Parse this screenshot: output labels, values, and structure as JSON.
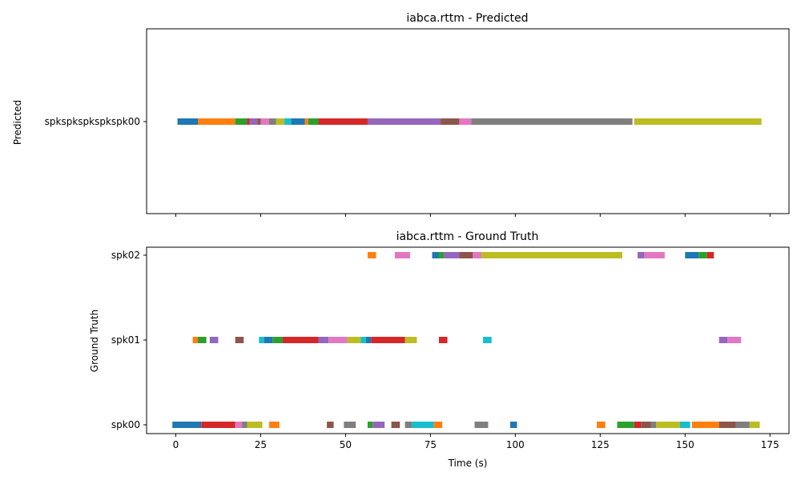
{
  "chart_data": [
    {
      "type": "timeline",
      "title": "iabca.rttm - Predicted",
      "ylabel": "Predicted",
      "xlabel": "",
      "xlim": [
        -8.6,
        180.6
      ],
      "xticks": [
        0,
        25,
        50,
        75,
        100,
        125,
        150,
        175
      ],
      "show_xtick_labels": false,
      "categories": [
        "spkspkspkspkspk00"
      ],
      "segments": [
        {
          "row": 0,
          "start": 0.5,
          "end": 6.5,
          "color": "#1f77b4"
        },
        {
          "row": 0,
          "start": 6.5,
          "end": 17.5,
          "color": "#ff7f0e"
        },
        {
          "row": 0,
          "start": 17.5,
          "end": 21.0,
          "color": "#2ca02c"
        },
        {
          "row": 0,
          "start": 21.0,
          "end": 21.8,
          "color": "#d62728"
        },
        {
          "row": 0,
          "start": 21.8,
          "end": 24.0,
          "color": "#9467bd"
        },
        {
          "row": 0,
          "start": 24.0,
          "end": 25.0,
          "color": "#8c564b"
        },
        {
          "row": 0,
          "start": 25.0,
          "end": 27.5,
          "color": "#e377c2"
        },
        {
          "row": 0,
          "start": 27.5,
          "end": 29.5,
          "color": "#7f7f7f"
        },
        {
          "row": 0,
          "start": 29.5,
          "end": 32.0,
          "color": "#bcbd22"
        },
        {
          "row": 0,
          "start": 32.0,
          "end": 34.0,
          "color": "#17becf"
        },
        {
          "row": 0,
          "start": 34.0,
          "end": 38.0,
          "color": "#1f77b4"
        },
        {
          "row": 0,
          "start": 38.0,
          "end": 39.0,
          "color": "#ff7f0e"
        },
        {
          "row": 0,
          "start": 39.0,
          "end": 42.0,
          "color": "#2ca02c"
        },
        {
          "row": 0,
          "start": 42.0,
          "end": 56.5,
          "color": "#d62728"
        },
        {
          "row": 0,
          "start": 56.5,
          "end": 78.0,
          "color": "#9467bd"
        },
        {
          "row": 0,
          "start": 78.0,
          "end": 83.5,
          "color": "#8c564b"
        },
        {
          "row": 0,
          "start": 83.5,
          "end": 87.0,
          "color": "#e377c2"
        },
        {
          "row": 0,
          "start": 87.0,
          "end": 134.5,
          "color": "#7f7f7f"
        },
        {
          "row": 0,
          "start": 135.0,
          "end": 172.5,
          "color": "#bcbd22"
        }
      ]
    },
    {
      "type": "timeline",
      "title": "iabca.rttm - Ground Truth",
      "ylabel": "Ground Truth",
      "xlabel": "Time (s)",
      "xlim": [
        -8.6,
        180.6
      ],
      "xticks": [
        0,
        25,
        50,
        75,
        100,
        125,
        150,
        175
      ],
      "show_xtick_labels": true,
      "categories": [
        "spk00",
        "spk01",
        "spk02"
      ],
      "segments": [
        {
          "row": 2,
          "start": 56.5,
          "end": 59.0,
          "color": "#ff7f0e"
        },
        {
          "row": 2,
          "start": 64.5,
          "end": 69.0,
          "color": "#e377c2"
        },
        {
          "row": 2,
          "start": 75.5,
          "end": 77.5,
          "color": "#1f77b4"
        },
        {
          "row": 2,
          "start": 77.5,
          "end": 79.0,
          "color": "#2ca02c"
        },
        {
          "row": 2,
          "start": 79.0,
          "end": 83.5,
          "color": "#9467bd"
        },
        {
          "row": 2,
          "start": 83.5,
          "end": 87.5,
          "color": "#8c564b"
        },
        {
          "row": 2,
          "start": 87.5,
          "end": 90.0,
          "color": "#e377c2"
        },
        {
          "row": 2,
          "start": 90.0,
          "end": 131.5,
          "color": "#bcbd22"
        },
        {
          "row": 2,
          "start": 136.0,
          "end": 138.0,
          "color": "#9467bd"
        },
        {
          "row": 2,
          "start": 138.0,
          "end": 144.0,
          "color": "#e377c2"
        },
        {
          "row": 2,
          "start": 150.0,
          "end": 154.0,
          "color": "#1f77b4"
        },
        {
          "row": 2,
          "start": 154.0,
          "end": 156.5,
          "color": "#2ca02c"
        },
        {
          "row": 2,
          "start": 156.5,
          "end": 158.5,
          "color": "#d62728"
        },
        {
          "row": 1,
          "start": 5.0,
          "end": 6.5,
          "color": "#ff7f0e"
        },
        {
          "row": 1,
          "start": 6.5,
          "end": 9.0,
          "color": "#2ca02c"
        },
        {
          "row": 1,
          "start": 10.0,
          "end": 12.5,
          "color": "#9467bd"
        },
        {
          "row": 1,
          "start": 17.5,
          "end": 20.0,
          "color": "#8c564b"
        },
        {
          "row": 1,
          "start": 24.5,
          "end": 26.0,
          "color": "#17becf"
        },
        {
          "row": 1,
          "start": 26.0,
          "end": 28.5,
          "color": "#1f77b4"
        },
        {
          "row": 1,
          "start": 28.5,
          "end": 31.5,
          "color": "#2ca02c"
        },
        {
          "row": 1,
          "start": 31.5,
          "end": 42.0,
          "color": "#d62728"
        },
        {
          "row": 1,
          "start": 42.0,
          "end": 45.0,
          "color": "#9467bd"
        },
        {
          "row": 1,
          "start": 45.0,
          "end": 50.5,
          "color": "#e377c2"
        },
        {
          "row": 1,
          "start": 50.5,
          "end": 54.5,
          "color": "#bcbd22"
        },
        {
          "row": 1,
          "start": 54.5,
          "end": 56.0,
          "color": "#17becf"
        },
        {
          "row": 1,
          "start": 56.0,
          "end": 57.5,
          "color": "#1f77b4"
        },
        {
          "row": 1,
          "start": 57.5,
          "end": 67.5,
          "color": "#d62728"
        },
        {
          "row": 1,
          "start": 67.5,
          "end": 71.0,
          "color": "#bcbd22"
        },
        {
          "row": 1,
          "start": 77.5,
          "end": 80.0,
          "color": "#d62728"
        },
        {
          "row": 1,
          "start": 90.5,
          "end": 93.0,
          "color": "#17becf"
        },
        {
          "row": 1,
          "start": 160.0,
          "end": 162.5,
          "color": "#9467bd"
        },
        {
          "row": 1,
          "start": 162.5,
          "end": 166.5,
          "color": "#e377c2"
        },
        {
          "row": 0,
          "start": -1.0,
          "end": 7.5,
          "color": "#1f77b4"
        },
        {
          "row": 0,
          "start": 7.5,
          "end": 17.5,
          "color": "#d62728"
        },
        {
          "row": 0,
          "start": 17.5,
          "end": 19.5,
          "color": "#e377c2"
        },
        {
          "row": 0,
          "start": 19.5,
          "end": 21.0,
          "color": "#7f7f7f"
        },
        {
          "row": 0,
          "start": 21.0,
          "end": 25.5,
          "color": "#bcbd22"
        },
        {
          "row": 0,
          "start": 27.5,
          "end": 30.5,
          "color": "#ff7f0e"
        },
        {
          "row": 0,
          "start": 44.5,
          "end": 46.5,
          "color": "#8c564b"
        },
        {
          "row": 0,
          "start": 49.5,
          "end": 53.0,
          "color": "#7f7f7f"
        },
        {
          "row": 0,
          "start": 56.5,
          "end": 58.0,
          "color": "#2ca02c"
        },
        {
          "row": 0,
          "start": 58.0,
          "end": 61.5,
          "color": "#9467bd"
        },
        {
          "row": 0,
          "start": 63.5,
          "end": 66.0,
          "color": "#8c564b"
        },
        {
          "row": 0,
          "start": 67.5,
          "end": 69.5,
          "color": "#7f7f7f"
        },
        {
          "row": 0,
          "start": 69.5,
          "end": 76.0,
          "color": "#17becf"
        },
        {
          "row": 0,
          "start": 76.0,
          "end": 78.5,
          "color": "#ff7f0e"
        },
        {
          "row": 0,
          "start": 88.0,
          "end": 92.0,
          "color": "#7f7f7f"
        },
        {
          "row": 0,
          "start": 98.5,
          "end": 100.5,
          "color": "#1f77b4"
        },
        {
          "row": 0,
          "start": 124.0,
          "end": 126.5,
          "color": "#ff7f0e"
        },
        {
          "row": 0,
          "start": 130.0,
          "end": 135.0,
          "color": "#2ca02c"
        },
        {
          "row": 0,
          "start": 135.0,
          "end": 137.0,
          "color": "#d62728"
        },
        {
          "row": 0,
          "start": 137.0,
          "end": 140.0,
          "color": "#8c564b"
        },
        {
          "row": 0,
          "start": 140.0,
          "end": 141.5,
          "color": "#7f7f7f"
        },
        {
          "row": 0,
          "start": 141.5,
          "end": 148.5,
          "color": "#bcbd22"
        },
        {
          "row": 0,
          "start": 148.5,
          "end": 151.5,
          "color": "#17becf"
        },
        {
          "row": 0,
          "start": 152.0,
          "end": 160.0,
          "color": "#ff7f0e"
        },
        {
          "row": 0,
          "start": 160.0,
          "end": 165.0,
          "color": "#8c564b"
        },
        {
          "row": 0,
          "start": 165.0,
          "end": 169.0,
          "color": "#7f7f7f"
        },
        {
          "row": 0,
          "start": 169.0,
          "end": 172.0,
          "color": "#bcbd22"
        }
      ]
    }
  ]
}
